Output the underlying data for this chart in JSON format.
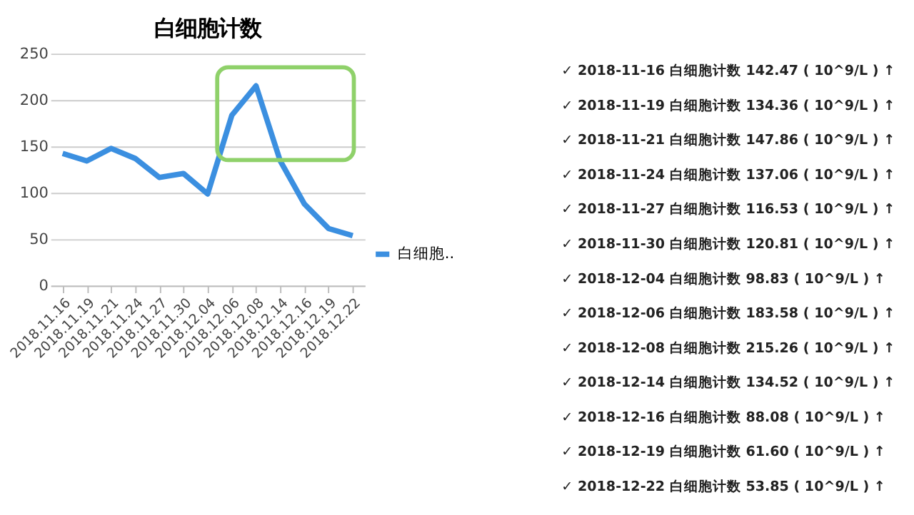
{
  "chart_data": [
    {
      "type": "line",
      "title": "白细胞计数",
      "categories": [
        "2018.11.16",
        "2018.11.19",
        "2018.11.21",
        "2018.11.24",
        "2018.11.27",
        "2018.11.30",
        "2018.12.04",
        "2018.12.06",
        "2018.12.08",
        "2018.12.14",
        "2018.12.16",
        "2018.12.19",
        "2018.12.22"
      ],
      "series": [
        {
          "name": "白细胞..",
          "color": "#3b8fe0",
          "values": [
            142.47,
            134.36,
            147.86,
            137.06,
            116.53,
            120.81,
            98.83,
            183.58,
            215.26,
            134.52,
            88.08,
            61.6,
            53.85
          ]
        }
      ],
      "ylim": [
        0,
        250
      ],
      "yticks": [
        0,
        50,
        100,
        150,
        200,
        250
      ],
      "grid": "y",
      "legend": "right",
      "marker": "none",
      "line_style": "solid"
    },
    {
      "type": "other",
      "annotations": [
        "✓  2018-11-16  白细胞计数  142.47 ( 10^9/L ) ↑",
        "✓  2018-11-19  白细胞计数  134.36 ( 10^9/L ) ↑",
        "✓  2018-11-21  白细胞计数  147.86 ( 10^9/L ) ↑",
        "✓  2018-11-24  白细胞计数  137.06 ( 10^9/L ) ↑",
        "✓  2018-11-27  白细胞计数  116.53 ( 10^9/L ) ↑",
        "✓  2018-11-30  白细胞计数  120.81 ( 10^9/L ) ↑",
        "✓  2018-12-04  白细胞计数  98.83  ( 10^9/L ) ↑",
        "✓  2018-12-06  白细胞计数  183.58 ( 10^9/L ) ↑",
        "✓  2018-12-08  白细胞计数  215.26 ( 10^9/L ) ↑",
        "✓  2018-12-14  白细胞计数  134.52 ( 10^9/L ) ↑",
        "✓  2018-12-16  白细胞计数  88.08  ( 10^9/L ) ↑",
        "✓  2018-12-19  白细胞计数  61.60  ( 10^9/L ) ↑",
        "✓  2018-12-22  白细胞计数  53.85  ( 10^9/L ) ↑"
      ]
    }
  ]
}
